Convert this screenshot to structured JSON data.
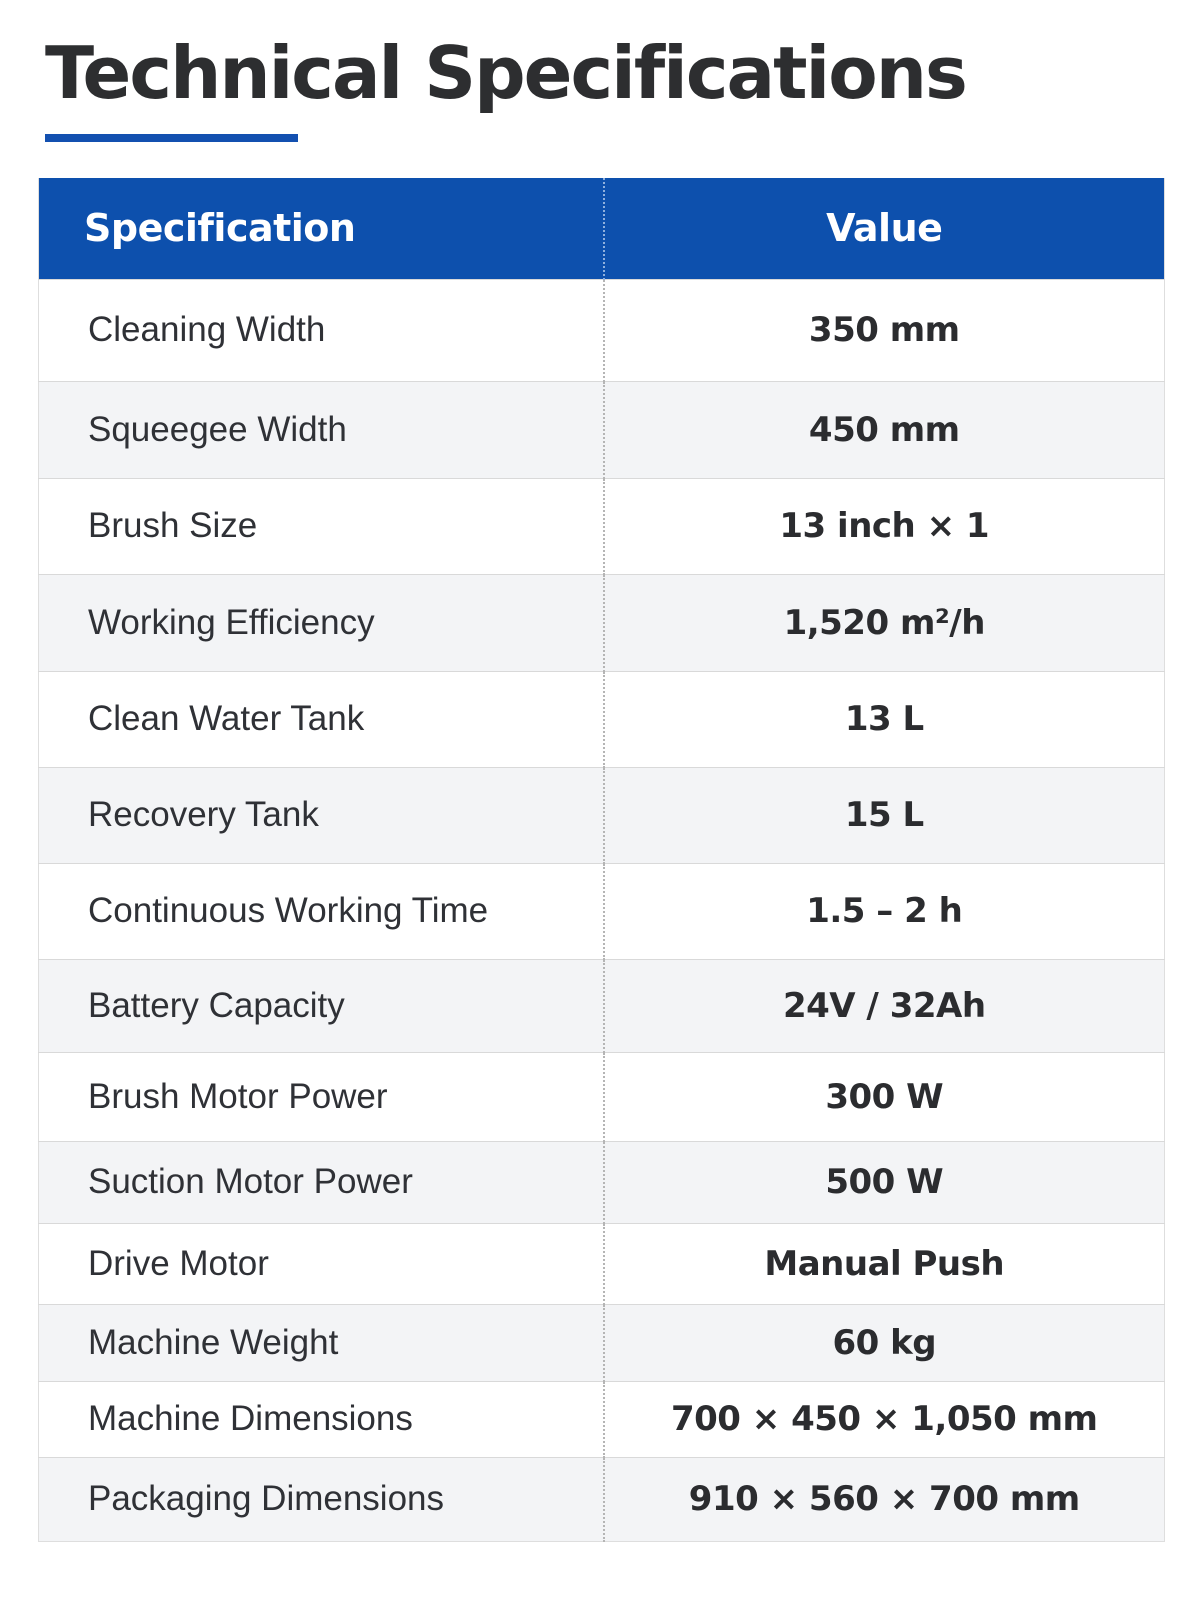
{
  "title": "Technical Specifications",
  "colors": {
    "accent": "#1350b0",
    "header_bg": "#0d50ad",
    "header_text": "#ffffff",
    "row_alt_bg": "#f3f4f6",
    "text": "#2d2e30"
  },
  "table": {
    "headers": {
      "spec": "Specification",
      "value": "Value"
    },
    "rows": [
      {
        "label": "Cleaning Width",
        "value": "350 mm"
      },
      {
        "label": "Squeegee Width",
        "value": "450 mm"
      },
      {
        "label": "Brush Size",
        "value": "13 inch × 1"
      },
      {
        "label": "Working Efficiency",
        "value": "1,520 m²/h"
      },
      {
        "label": "Clean Water Tank",
        "value": "13 L"
      },
      {
        "label": "Recovery Tank",
        "value": "15 L"
      },
      {
        "label": "Continuous Working Time",
        "value": "1.5 – 2 h"
      },
      {
        "label": "Battery Capacity",
        "value": "24V / 32Ah"
      },
      {
        "label": "Brush Motor Power",
        "value": "300 W"
      },
      {
        "label": "Suction Motor Power",
        "value": "500 W"
      },
      {
        "label": "Drive Motor",
        "value": "Manual Push"
      },
      {
        "label": "Machine Weight",
        "value": "60 kg"
      },
      {
        "label": "Machine Dimensions",
        "value": "700 × 450 × 1,050 mm"
      },
      {
        "label": "Packaging Dimensions",
        "value": "910 × 560 × 700 mm"
      }
    ]
  }
}
